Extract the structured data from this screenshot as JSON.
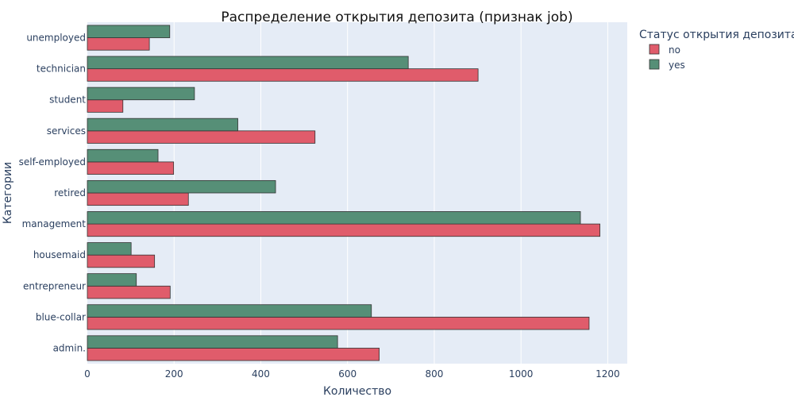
{
  "chart_data": {
    "type": "bar",
    "orientation": "horizontal",
    "title": "Распределение открытия депозита (признак job)",
    "xlabel": "Количество",
    "ylabel": "Категории",
    "xlim": [
      0,
      1245
    ],
    "xticks": [
      0,
      200,
      400,
      600,
      800,
      1000,
      1200
    ],
    "grid": true,
    "legend_title": "Статус открытия депозита",
    "legend_position": "top-right",
    "categories": [
      "unemployed",
      "technician",
      "student",
      "services",
      "self-employed",
      "retired",
      "management",
      "housemaid",
      "entrepreneur",
      "blue-collar",
      "admin."
    ],
    "series": [
      {
        "name": "no",
        "color": "#e05c6b",
        "values": [
          143,
          901,
          82,
          525,
          199,
          233,
          1182,
          155,
          191,
          1157,
          673
        ]
      },
      {
        "name": "yes",
        "color": "#568f77",
        "values": [
          190,
          740,
          247,
          347,
          163,
          434,
          1137,
          101,
          113,
          655,
          577
        ]
      }
    ]
  }
}
